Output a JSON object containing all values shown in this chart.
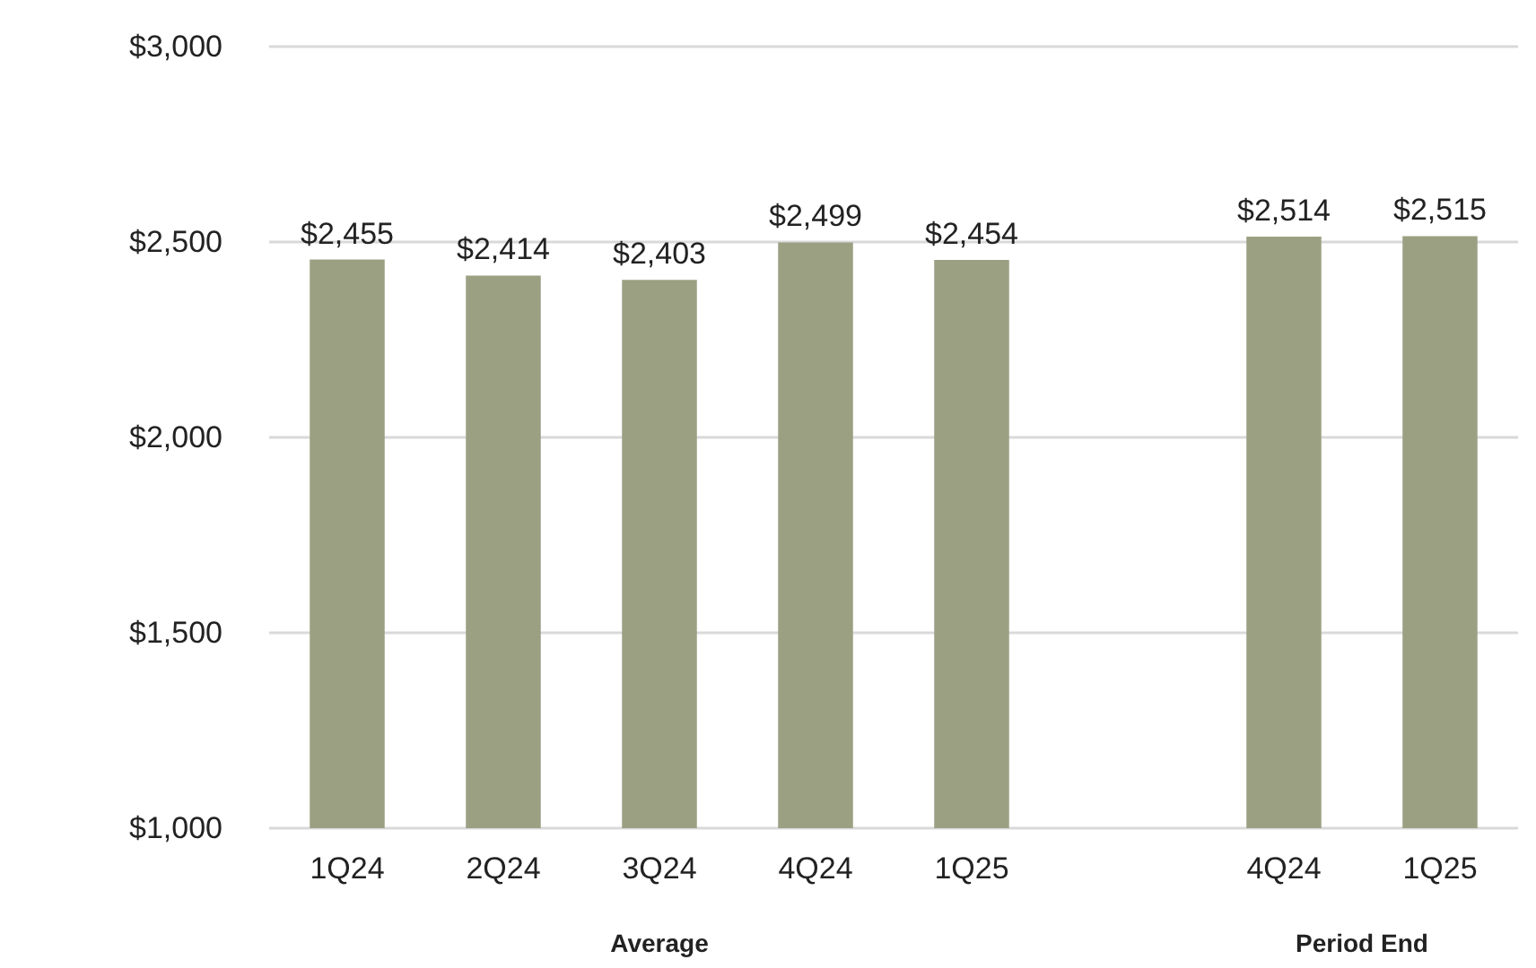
{
  "chart_data": {
    "type": "bar",
    "categories": [
      "1Q24",
      "2Q24",
      "3Q24",
      "4Q24",
      "1Q25",
      null,
      "4Q24",
      "1Q25"
    ],
    "values": [
      2455,
      2414,
      2403,
      2499,
      2454,
      null,
      2514,
      2515
    ],
    "value_labels": [
      "$2,455",
      "$2,414",
      "$2,403",
      "$2,499",
      "$2,454",
      null,
      "$2,514",
      "$2,515"
    ],
    "color": "#9ca083",
    "ylim": [
      1000,
      3000
    ],
    "yticks": [
      {
        "value": 1000,
        "label": "$1,000"
      },
      {
        "value": 1500,
        "label": "$1,500"
      },
      {
        "value": 2000,
        "label": "$2,000"
      },
      {
        "value": 2500,
        "label": "$2,500"
      },
      {
        "value": 3000,
        "label": "$3,000"
      }
    ],
    "grid": "y",
    "annotations": [
      "Average",
      "Period End"
    ]
  }
}
